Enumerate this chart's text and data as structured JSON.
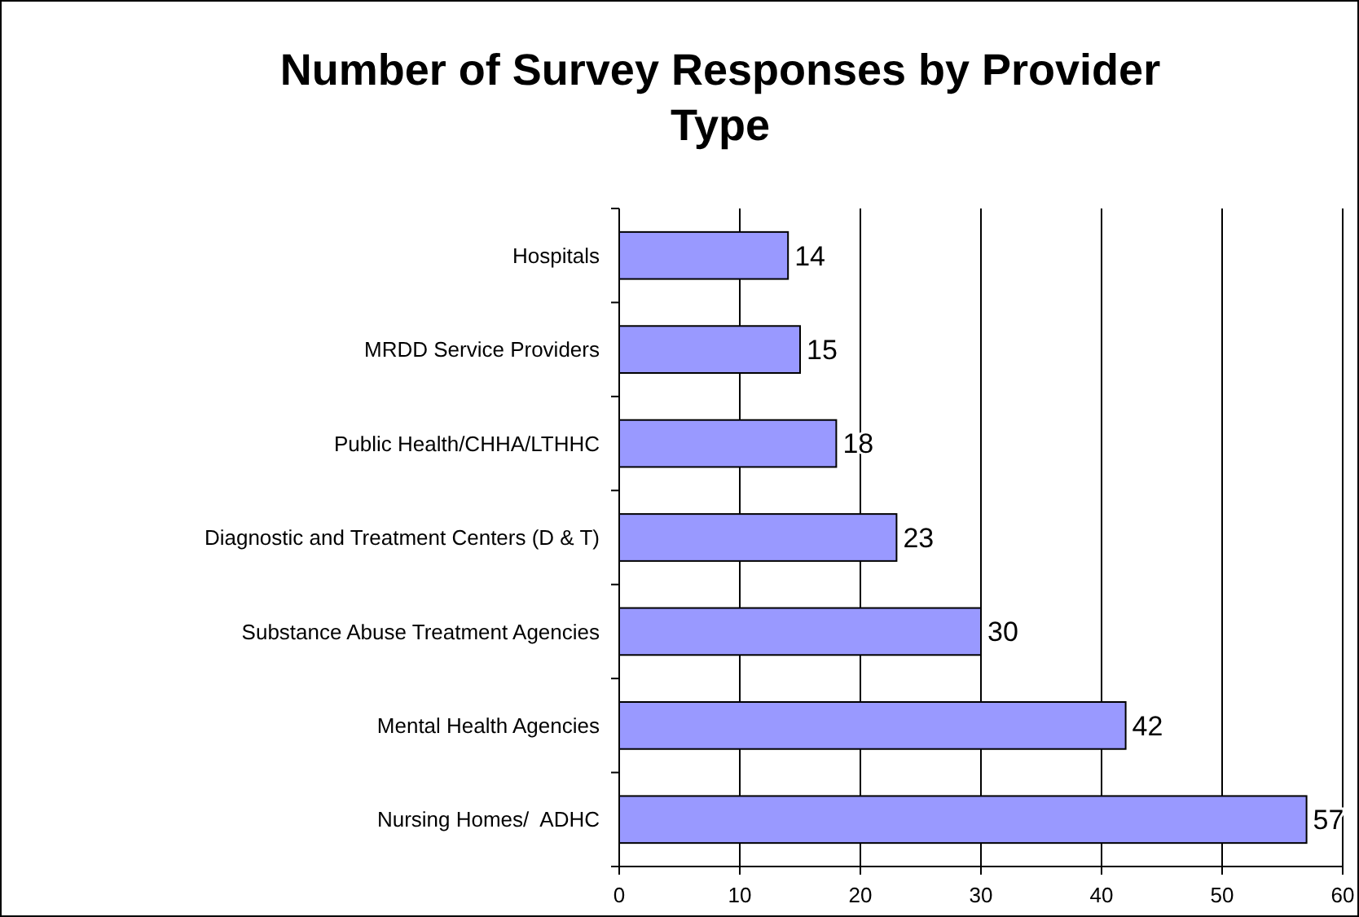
{
  "chart_data": {
    "type": "bar",
    "orientation": "horizontal",
    "title": "Number of Survey Responses by Provider Type",
    "categories": [
      "Hospitals",
      "MRDD Service Providers",
      "Public Health/CHHA/LTHHC",
      "Diagnostic and Treatment Centers (D & T)",
      "Substance Abuse Treatment Agencies",
      "Mental Health Agencies",
      "Nursing Homes/  ADHC"
    ],
    "values": [
      14,
      15,
      18,
      23,
      30,
      42,
      57
    ],
    "color": "#9999ff",
    "xlim": [
      0,
      60
    ],
    "xticks": [
      0,
      10,
      20,
      30,
      40,
      50,
      60
    ],
    "grid": "x",
    "data_labels": true
  }
}
